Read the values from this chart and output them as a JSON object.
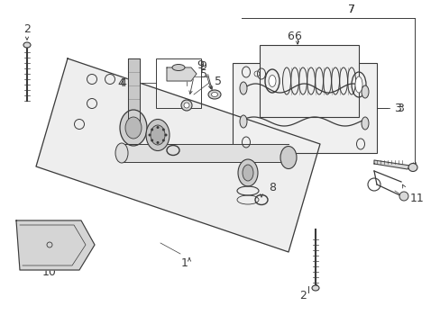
{
  "bg_color": "#ffffff",
  "fig_width": 4.89,
  "fig_height": 3.6,
  "dpi": 100,
  "gray_fill": "#e8e8e8",
  "dark": "#3a3a3a",
  "med": "#666666",
  "light_fill": "#f0f0f0",
  "part_fill": "#d8d8d8"
}
